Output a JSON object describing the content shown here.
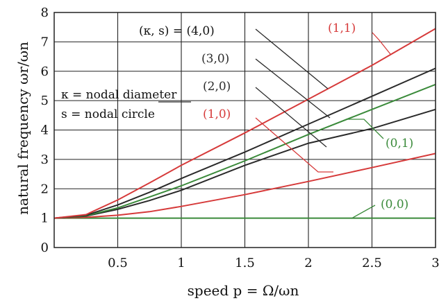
{
  "chart_data": {
    "type": "line",
    "title": "",
    "xlabel": "speed p = Ω/ωn",
    "ylabel": "natural frequency ωr/ωn",
    "xlim": [
      0,
      3
    ],
    "ylim": [
      0,
      8
    ],
    "x_ticks": [
      "0.5",
      "1",
      "1.5",
      "2",
      "2.5",
      "3"
    ],
    "y_ticks": [
      "0",
      "1",
      "2",
      "3",
      "4",
      "5",
      "6",
      "7",
      "8"
    ],
    "grid": true,
    "series": [
      {
        "name": "(0,0)",
        "color": "#3a8a3a",
        "x": [
          0,
          0.5,
          1,
          1.5,
          2,
          2.5,
          3
        ],
        "y": [
          1,
          1,
          1,
          1,
          1,
          1,
          1
        ]
      },
      {
        "name": "(1,0)",
        "color": "#d63a3a",
        "x": [
          0,
          0.25,
          0.5,
          0.75,
          1,
          1.5,
          2,
          2.5,
          3
        ],
        "y": [
          1.0,
          1.03,
          1.1,
          1.22,
          1.4,
          1.8,
          2.25,
          2.72,
          3.2
        ]
      },
      {
        "name": "(2,0)",
        "color": "#2a2a2a",
        "x": [
          0,
          0.25,
          0.5,
          0.75,
          1,
          1.5,
          2,
          2.5,
          3
        ],
        "y": [
          1.0,
          1.07,
          1.3,
          1.6,
          1.95,
          2.8,
          3.55,
          4.05,
          4.7
        ]
      },
      {
        "name": "(0,1)",
        "color": "#3a8a3a",
        "x": [
          0,
          0.25,
          0.5,
          0.75,
          1,
          1.5,
          2,
          2.5,
          3
        ],
        "y": [
          1.0,
          1.08,
          1.35,
          1.72,
          2.1,
          2.95,
          3.85,
          4.7,
          5.55
        ]
      },
      {
        "name": "(3,0)",
        "color": "#2a2a2a",
        "x": [
          0,
          0.25,
          0.5,
          0.75,
          1,
          1.5,
          2,
          2.5,
          3
        ],
        "y": [
          1.0,
          1.1,
          1.45,
          1.88,
          2.35,
          3.25,
          4.2,
          5.15,
          6.1
        ]
      },
      {
        "name": "(1,1)",
        "color": "#d63a3a",
        "x": [
          0,
          0.25,
          0.5,
          0.75,
          1,
          1.5,
          2,
          2.5,
          3
        ],
        "y": [
          1.0,
          1.12,
          1.62,
          2.2,
          2.8,
          3.9,
          5.05,
          6.2,
          7.45
        ]
      }
    ],
    "annotations": {
      "legend_header": "(κ, s) = (4,0)",
      "kappa_def": "κ = nodal diameter",
      "s_def": "s = nodal circle",
      "labels": [
        {
          "text": "(3,0)",
          "color": "#2a2a2a"
        },
        {
          "text": "(2,0)",
          "color": "#2a2a2a"
        },
        {
          "text": "(1,0)",
          "color": "#d63a3a"
        },
        {
          "text": "(1,1)",
          "color": "#d63a3a"
        },
        {
          "text": "(0,1)",
          "color": "#3a8a3a"
        },
        {
          "text": "(0,0)",
          "color": "#3a8a3a"
        }
      ]
    }
  }
}
